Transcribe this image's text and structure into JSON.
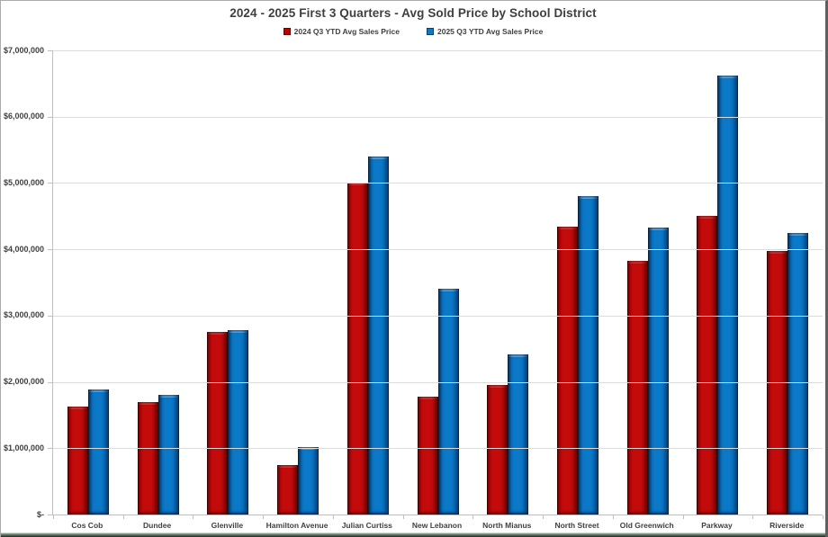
{
  "chart_data": {
    "type": "bar",
    "title": "2024 - 2025 First 3 Quarters - Avg Sold Price by School District",
    "categories": [
      "Cos Cob",
      "Dundee",
      "Glenville",
      "Hamilton Avenue",
      "Julian Curtiss",
      "New Lebanon",
      "North Mianus",
      "North Street",
      "Old Greenwich",
      "Parkway",
      "Riverside"
    ],
    "series": [
      {
        "name": "2024 Q3 YTD Avg Sales Price",
        "color": "#C00000",
        "values": [
          1630000,
          1690000,
          2760000,
          750000,
          5010000,
          1780000,
          1950000,
          4340000,
          3820000,
          4510000,
          3980000
        ]
      },
      {
        "name": "2025 Q3 YTD Avg Sales Price",
        "color": "#0B78C8",
        "values": [
          1890000,
          1810000,
          2780000,
          1020000,
          5400000,
          3400000,
          2420000,
          4800000,
          4330000,
          6620000,
          4250000
        ]
      }
    ],
    "xlabel": "",
    "ylabel": "",
    "ylim": [
      0,
      7000000
    ],
    "y_tick_step": 1000000,
    "y_tick_labels_top_to_bottom": [
      "$7,000,000",
      "$6,000,000",
      "$5,000,000",
      "$4,000,000",
      "$3,000,000",
      "$2,000,000",
      "$1,000,000",
      "$-"
    ],
    "grid": true,
    "legend_position": "top"
  },
  "colors": {
    "gridline": "#DCDCDC",
    "axis_line": "#BFBFBF",
    "text": "#404040",
    "series_2024": "#C00000",
    "series_2025": "#0B78C8"
  }
}
